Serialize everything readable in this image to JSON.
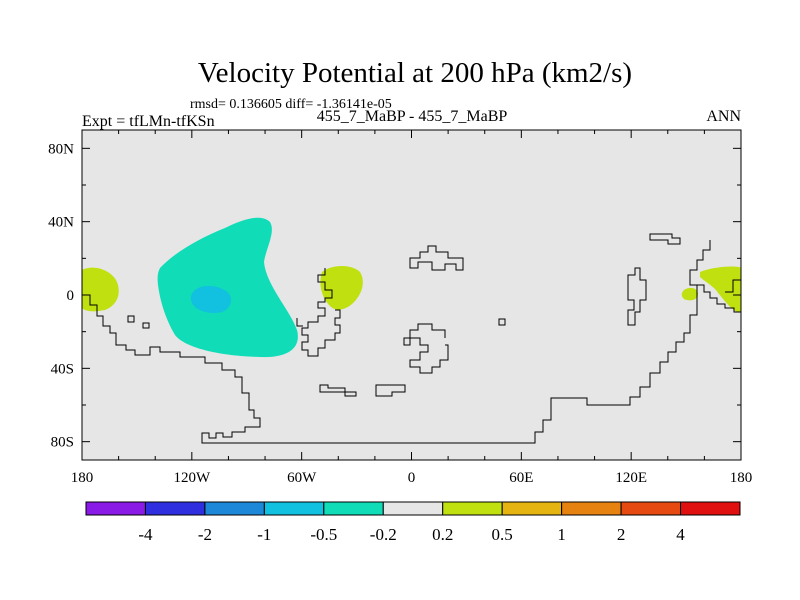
{
  "chart_data": {
    "type": "contour-map",
    "title": "Velocity Potential at 200 hPa (km2/s)",
    "subtitle_stats": "rmsd= 0.136605 diff= -1.36141e-05",
    "subtitle_case": "455_7_MaBP - 455_7_MaBP",
    "left_label": "Expt = tfLMn-tfKSn",
    "right_label": "ANN",
    "x_axis": {
      "range": [
        -180,
        180
      ],
      "ticks": [
        -180,
        -120,
        -60,
        0,
        60,
        120,
        180
      ],
      "tick_labels": [
        "180",
        "120W",
        "60W",
        "0",
        "60E",
        "120E",
        "180"
      ]
    },
    "y_axis": {
      "range": [
        -90,
        90
      ],
      "ticks": [
        80,
        40,
        0,
        -40,
        -80
      ],
      "tick_labels": [
        "80N",
        "40N",
        "0",
        "40S",
        "80S"
      ]
    },
    "colorbar": {
      "levels": [
        -4,
        -2,
        -1,
        -0.5,
        -0.2,
        0.2,
        0.5,
        1,
        2,
        4
      ],
      "level_labels": [
        "-4",
        "-2",
        "-1",
        "-0.5",
        "-0.2",
        "0.2",
        "0.5",
        "1",
        "2",
        "4"
      ],
      "colors": [
        "#8a1ae6",
        "#2f2fe0",
        "#1e88d8",
        "#12c0e0",
        "#10dcb8",
        "#e6e6e6",
        "#c0e010",
        "#e6b410",
        "#e68210",
        "#e64a10",
        "#e01010"
      ]
    },
    "features": [
      {
        "name": "pacific-positive-west",
        "value_bin": "0.2 to 0.5",
        "lon_range": [
          -180,
          -160
        ],
        "lat_range": [
          -10,
          15
        ]
      },
      {
        "name": "pacific-negative",
        "value_bin": "-0.5 to -0.2",
        "lon_range": [
          -140,
          -60
        ],
        "lat_range": [
          -35,
          42
        ]
      },
      {
        "name": "pacific-negative-core",
        "value_bin": "-1 to -0.5",
        "lon_range": [
          -120,
          -105
        ],
        "lat_range": [
          -10,
          5
        ]
      },
      {
        "name": "atlantic-positive",
        "value_bin": "0.2 to 0.5",
        "lon_range": [
          -50,
          -25
        ],
        "lat_range": [
          -8,
          16
        ]
      },
      {
        "name": "westpac-positive",
        "value_bin": "0.2 to 0.5",
        "lon_range": [
          148,
          180
        ],
        "lat_range": [
          -10,
          15
        ]
      }
    ]
  },
  "colors": {
    "background": "#e6e6e6",
    "positive_band": "#c0e010",
    "negative_band": "#10dcb8",
    "negative_core": "#12c0e0",
    "coastline": "#000000"
  }
}
